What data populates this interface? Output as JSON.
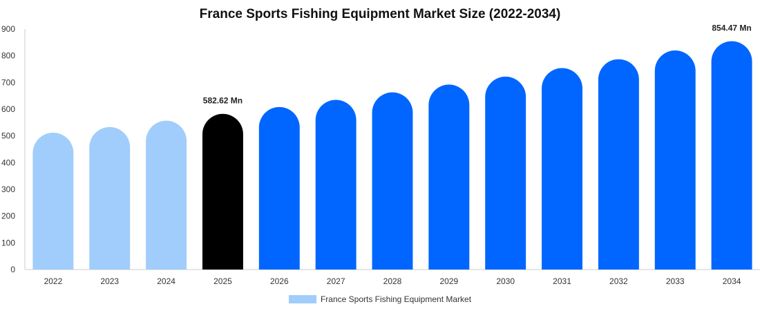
{
  "chart_data": {
    "type": "bar",
    "title": "France Sports Fishing Equipment Market Size (2022-2034)",
    "categories": [
      "2022",
      "2023",
      "2024",
      "2025",
      "2026",
      "2027",
      "2028",
      "2029",
      "2030",
      "2031",
      "2032",
      "2033",
      "2034"
    ],
    "series": [
      {
        "name": "France Sports Fishing Equipment Market",
        "values": [
          512,
          533,
          557,
          582.62,
          608,
          635,
          663,
          692,
          722,
          754,
          787,
          820,
          854.47
        ]
      }
    ],
    "data_labels": [
      {
        "category": "2025",
        "text": "582.62 Mn"
      },
      {
        "category": "2034",
        "text": "854.47 Mn"
      }
    ],
    "yticks": [
      "0",
      "100",
      "200",
      "300",
      "400",
      "500",
      "600",
      "700",
      "800",
      "900"
    ],
    "ylim": [
      0,
      900
    ],
    "xlabel": "",
    "ylabel": "",
    "grid": false,
    "legend_position": "bottom",
    "bar_colors": {
      "historical": "#a0cdfb",
      "base_year": "#000000",
      "forecast": "#0066ff"
    },
    "bar_color_by_category": [
      "historical",
      "historical",
      "historical",
      "base_year",
      "forecast",
      "forecast",
      "forecast",
      "forecast",
      "forecast",
      "forecast",
      "forecast",
      "forecast",
      "forecast"
    ],
    "legend_swatch_color": "#a0cdfb"
  }
}
